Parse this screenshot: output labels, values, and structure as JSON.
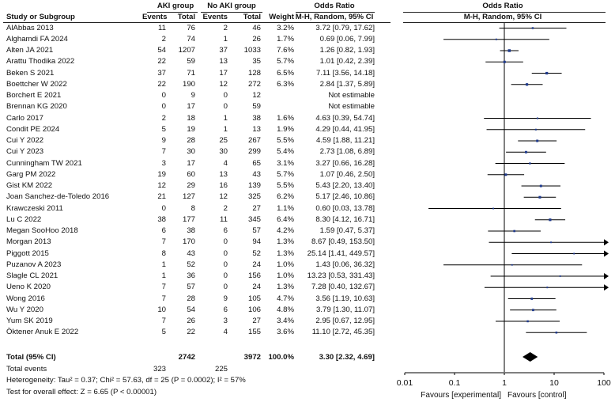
{
  "headers": {
    "aki_group": "AKI group",
    "no_aki_group": "No AKI group",
    "odds_ratio_left": "Odds Ratio",
    "odds_ratio_right": "Odds Ratio",
    "study": "Study or Subgroup",
    "events": "Events",
    "total": "Total",
    "events2": "Events",
    "total2": "Total",
    "weight": "Weight",
    "method_left": "M-H, Random, 95% CI",
    "method_right": "M-H, Random, 95% CI"
  },
  "studies": [
    {
      "study": "AlAbbas 2013",
      "e1": "11",
      "t1": "76",
      "e2": "2",
      "t2": "46",
      "weight": "3.2%",
      "ci": "3.72 [0.79, 17.62]",
      "or": 3.72,
      "lo": 0.79,
      "hi": 17.62
    },
    {
      "study": "Alghamdi FA 2024",
      "e1": "2",
      "t1": "74",
      "e2": "1",
      "t2": "26",
      "weight": "1.7%",
      "ci": "0.69 [0.06, 7.99]",
      "or": 0.69,
      "lo": 0.06,
      "hi": 7.99
    },
    {
      "study": "Alten JA 2021",
      "e1": "54",
      "t1": "1207",
      "e2": "37",
      "t2": "1033",
      "weight": "7.6%",
      "ci": "1.26 [0.82, 1.93]",
      "or": 1.26,
      "lo": 0.82,
      "hi": 1.93
    },
    {
      "study": "Arattu Thodika 2022",
      "e1": "22",
      "t1": "59",
      "e2": "13",
      "t2": "35",
      "weight": "5.7%",
      "ci": "1.01 [0.42, 2.39]",
      "or": 1.01,
      "lo": 0.42,
      "hi": 2.39
    },
    {
      "study": "Beken S 2021",
      "e1": "37",
      "t1": "71",
      "e2": "17",
      "t2": "128",
      "weight": "6.5%",
      "ci": "7.11 [3.56, 14.18]",
      "or": 7.11,
      "lo": 3.56,
      "hi": 14.18
    },
    {
      "study": "Boettcher W 2022",
      "e1": "22",
      "t1": "190",
      "e2": "12",
      "t2": "272",
      "weight": "6.3%",
      "ci": "2.84 [1.37, 5.89]",
      "or": 2.84,
      "lo": 1.37,
      "hi": 5.89
    },
    {
      "study": "Borchert E 2021",
      "e1": "0",
      "t1": "9",
      "e2": "0",
      "t2": "12",
      "weight": "",
      "ci": "Not estimable",
      "or": null,
      "lo": null,
      "hi": null
    },
    {
      "study": "Brennan KG 2020",
      "e1": "0",
      "t1": "17",
      "e2": "0",
      "t2": "59",
      "weight": "",
      "ci": "Not estimable",
      "or": null,
      "lo": null,
      "hi": null
    },
    {
      "study": "Carlo 2017",
      "e1": "2",
      "t1": "18",
      "e2": "1",
      "t2": "38",
      "weight": "1.6%",
      "ci": "4.63 [0.39, 54.74]",
      "or": 4.63,
      "lo": 0.39,
      "hi": 54.74
    },
    {
      "study": "Condit PE 2024",
      "e1": "5",
      "t1": "19",
      "e2": "1",
      "t2": "13",
      "weight": "1.9%",
      "ci": "4.29 [0.44, 41.95]",
      "or": 4.29,
      "lo": 0.44,
      "hi": 41.95
    },
    {
      "study": "Cui Y 2022",
      "e1": "9",
      "t1": "28",
      "e2": "25",
      "t2": "267",
      "weight": "5.5%",
      "ci": "4.59 [1.88, 11.21]",
      "or": 4.59,
      "lo": 1.88,
      "hi": 11.21
    },
    {
      "study": "Cui Y 2023",
      "e1": "7",
      "t1": "30",
      "e2": "30",
      "t2": "299",
      "weight": "5.4%",
      "ci": "2.73 [1.08, 6.89]",
      "or": 2.73,
      "lo": 1.08,
      "hi": 6.89
    },
    {
      "study": "Cunningham TW 2021",
      "e1": "3",
      "t1": "17",
      "e2": "4",
      "t2": "65",
      "weight": "3.1%",
      "ci": "3.27 [0.66, 16.28]",
      "or": 3.27,
      "lo": 0.66,
      "hi": 16.28
    },
    {
      "study": "Garg PM 2022",
      "e1": "19",
      "t1": "60",
      "e2": "13",
      "t2": "43",
      "weight": "5.7%",
      "ci": "1.07 [0.46, 2.50]",
      "or": 1.07,
      "lo": 0.46,
      "hi": 2.5
    },
    {
      "study": "Gist KM 2022",
      "e1": "12",
      "t1": "29",
      "e2": "16",
      "t2": "139",
      "weight": "5.5%",
      "ci": "5.43 [2.20, 13.40]",
      "or": 5.43,
      "lo": 2.2,
      "hi": 13.4
    },
    {
      "study": "Joan Sanchez-de-Toledo 2016",
      "e1": "21",
      "t1": "127",
      "e2": "12",
      "t2": "325",
      "weight": "6.2%",
      "ci": "5.17 [2.46, 10.86]",
      "or": 5.17,
      "lo": 2.46,
      "hi": 10.86
    },
    {
      "study": "Krawczeski 2011",
      "e1": "0",
      "t1": "8",
      "e2": "2",
      "t2": "27",
      "weight": "1.1%",
      "ci": "0.60 [0.03, 13.78]",
      "or": 0.6,
      "lo": 0.03,
      "hi": 13.78
    },
    {
      "study": "Lu C 2022",
      "e1": "38",
      "t1": "177",
      "e2": "11",
      "t2": "345",
      "weight": "6.4%",
      "ci": "8.30 [4.12, 16.71]",
      "or": 8.3,
      "lo": 4.12,
      "hi": 16.71
    },
    {
      "study": "Megan SooHoo 2018",
      "e1": "6",
      "t1": "38",
      "e2": "6",
      "t2": "57",
      "weight": "4.2%",
      "ci": "1.59 [0.47, 5.37]",
      "or": 1.59,
      "lo": 0.47,
      "hi": 5.37
    },
    {
      "study": "Morgan 2013",
      "e1": "7",
      "t1": "170",
      "e2": "0",
      "t2": "94",
      "weight": "1.3%",
      "ci": "8.67 [0.49, 153.50]",
      "or": 8.67,
      "lo": 0.49,
      "hi": 153.5
    },
    {
      "study": "Piggott 2015",
      "e1": "8",
      "t1": "43",
      "e2": "0",
      "t2": "52",
      "weight": "1.3%",
      "ci": "25.14 [1.41, 449.57]",
      "or": 25.14,
      "lo": 1.41,
      "hi": 449.57
    },
    {
      "study": "Puzanov A 2023",
      "e1": "1",
      "t1": "52",
      "e2": "0",
      "t2": "24",
      "weight": "1.0%",
      "ci": "1.43 [0.06, 36.32]",
      "or": 1.43,
      "lo": 0.06,
      "hi": 36.32
    },
    {
      "study": "Slagle CL 2021",
      "e1": "1",
      "t1": "36",
      "e2": "0",
      "t2": "156",
      "weight": "1.0%",
      "ci": "13.23 [0.53, 331.43]",
      "or": 13.23,
      "lo": 0.53,
      "hi": 331.43
    },
    {
      "study": "Ueno K 2020",
      "e1": "7",
      "t1": "57",
      "e2": "0",
      "t2": "24",
      "weight": "1.3%",
      "ci": "7.28 [0.40, 132.67]",
      "or": 7.28,
      "lo": 0.4,
      "hi": 132.67
    },
    {
      "study": "Wong 2016",
      "e1": "7",
      "t1": "28",
      "e2": "9",
      "t2": "105",
      "weight": "4.7%",
      "ci": "3.56 [1.19, 10.63]",
      "or": 3.56,
      "lo": 1.19,
      "hi": 10.63
    },
    {
      "study": "Wu Y 2020",
      "e1": "10",
      "t1": "54",
      "e2": "6",
      "t2": "106",
      "weight": "4.8%",
      "ci": "3.79 [1.30, 11.07]",
      "or": 3.79,
      "lo": 1.3,
      "hi": 11.07
    },
    {
      "study": "Yum SK 2019",
      "e1": "7",
      "t1": "26",
      "e2": "3",
      "t2": "27",
      "weight": "3.4%",
      "ci": "2.95 [0.67, 12.95]",
      "or": 2.95,
      "lo": 0.67,
      "hi": 12.95
    },
    {
      "study": "Öktener Anuk E 2022",
      "e1": "5",
      "t1": "22",
      "e2": "4",
      "t2": "155",
      "weight": "3.6%",
      "ci": "11.10 [2.72, 45.35]",
      "or": 11.1,
      "lo": 2.72,
      "hi": 45.35
    }
  ],
  "total": {
    "label": "Total (95% CI)",
    "t1": "2742",
    "t2": "3972",
    "weight": "100.0%",
    "ci": "3.30 [2.32, 4.69]",
    "or": 3.3,
    "lo": 2.32,
    "hi": 4.69
  },
  "events": {
    "label": "Total events",
    "e1": "323",
    "e2": "225"
  },
  "heterogeneity": "Heterogeneity: Tau² = 0.37; Chi² = 57.63, df = 25 (P = 0.0002); I² = 57%",
  "overall_effect": "Test for overall effect: Z = 6.65 (P < 0.00001)",
  "axis": {
    "ticks": [
      0.01,
      0.1,
      1,
      10,
      100
    ],
    "tick_labels": [
      "0.01",
      "0.1",
      "1",
      "10",
      "100"
    ],
    "favours_left": "Favours [experimental]",
    "favours_right": "Favours [control]"
  },
  "chart_data": {
    "type": "forest",
    "title": "Odds Ratio M-H, Random, 95% CI",
    "scale": "log",
    "xlim": [
      0.01,
      100
    ],
    "null_line": 1,
    "categories": [
      "AlAbbas 2013",
      "Alghamdi FA 2024",
      "Alten JA 2021",
      "Arattu Thodika 2022",
      "Beken S 2021",
      "Boettcher W 2022",
      "Borchert E 2021",
      "Brennan KG 2020",
      "Carlo 2017",
      "Condit PE 2024",
      "Cui Y 2022",
      "Cui Y 2023",
      "Cunningham TW 2021",
      "Garg PM 2022",
      "Gist KM 2022",
      "Joan Sanchez-de-Toledo 2016",
      "Krawczeski 2011",
      "Lu C 2022",
      "Megan SooHoo 2018",
      "Morgan 2013",
      "Piggott 2015",
      "Puzanov A 2023",
      "Slagle CL 2021",
      "Ueno K 2020",
      "Wong 2016",
      "Wu Y 2020",
      "Yum SK 2019",
      "Öktener Anuk E 2022"
    ],
    "pooled": {
      "or": 3.3,
      "lo": 2.32,
      "hi": 4.69
    },
    "xlabel_left": "Favours [experimental]",
    "xlabel_right": "Favours [control]"
  }
}
